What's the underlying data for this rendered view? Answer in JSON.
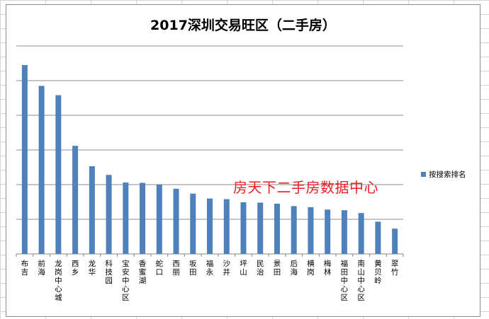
{
  "chart_data": {
    "type": "bar",
    "title": "2017深圳交易旺区（二手房）",
    "categories": [
      "布吉",
      "前海",
      "龙岗中心城",
      "西乡",
      "龙华",
      "科技园",
      "宝安中心区",
      "香蜜湖",
      "蛇口",
      "西丽",
      "坂田",
      "福永",
      "沙井",
      "坪山",
      "民治",
      "景田",
      "后海",
      "横岗",
      "梅林",
      "福田中心区",
      "南山中心区",
      "黄贝岭",
      "翠竹"
    ],
    "series": [
      {
        "name": "按搜索排名",
        "values": [
          54.5,
          48.5,
          45.8,
          31.2,
          25.3,
          22.8,
          20.6,
          20.5,
          20.0,
          18.8,
          17.4,
          16.0,
          15.8,
          14.9,
          14.8,
          14.5,
          13.8,
          13.5,
          12.8,
          12.6,
          11.8,
          9.3,
          7.3
        ]
      }
    ],
    "ylim": [
      0,
      60
    ],
    "y_gridlines": [
      0,
      10,
      20,
      30,
      40,
      50,
      60
    ],
    "y_tick_labels_shown": false,
    "grid": true,
    "legend": "right",
    "bar_color": "#4f81bd",
    "annotation": "房天下二手房数据中心",
    "annotation_color": "#ee1c25"
  }
}
